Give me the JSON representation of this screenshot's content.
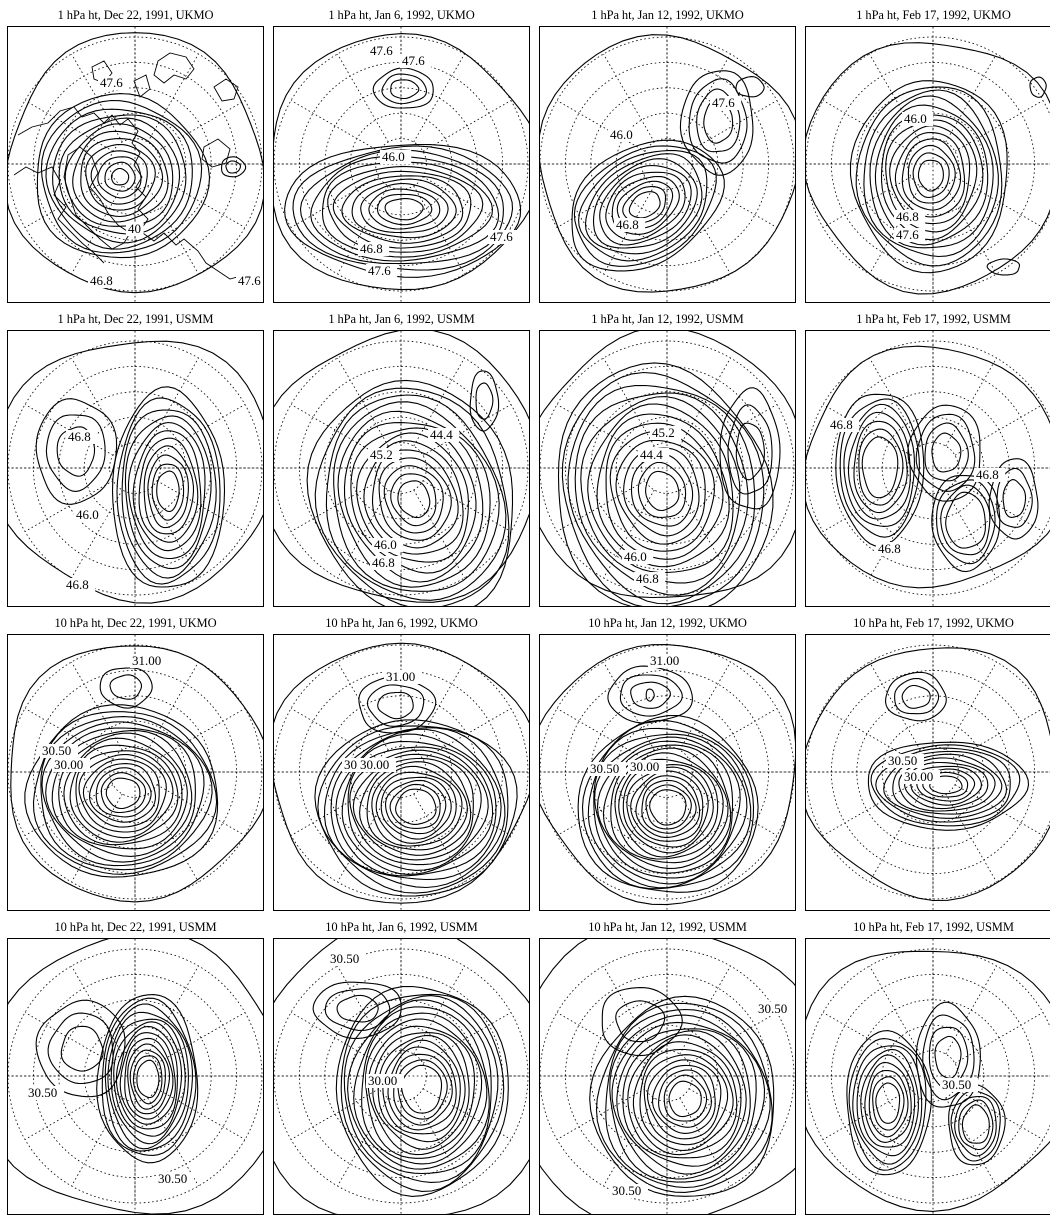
{
  "figure": {
    "panels": [
      {
        "title": "1 hPa ht, Dec 22, 1991, UKMO",
        "model": "UKMO",
        "level": "1 hPa",
        "date": "Dec 22, 1991",
        "coastlines": true,
        "labels": [
          "47.6",
          "46.8",
          "47.6",
          "40"
        ]
      },
      {
        "title": "1 hPa ht, Jan  6, 1992, UKMO",
        "model": "UKMO",
        "level": "1 hPa",
        "date": "Jan 6, 1992",
        "coastlines": false,
        "labels": [
          "47.6",
          "47.6",
          "46.0",
          "46.8",
          "47.6",
          "47.6"
        ]
      },
      {
        "title": "1 hPa ht, Jan 12, 1992, UKMO",
        "model": "UKMO",
        "level": "1 hPa",
        "date": "Jan 12, 1992",
        "coastlines": false,
        "labels": [
          "47.6",
          "46.0",
          "46.8"
        ]
      },
      {
        "title": "1 hPa ht, Feb 17, 1992, UKMO",
        "model": "UKMO",
        "level": "1 hPa",
        "date": "Feb 17, 1992",
        "coastlines": false,
        "labels": [
          "46.0",
          "46.8",
          "47.6"
        ]
      },
      {
        "title": "1 hPa ht, Dec 22, 1991, USMM",
        "model": "USMM",
        "level": "1 hPa",
        "date": "Dec 22, 1991",
        "coastlines": false,
        "labels": [
          "46.8",
          "46.0",
          "46.8"
        ]
      },
      {
        "title": "1 hPa ht, Jan  6, 1992, USMM",
        "model": "USMM",
        "level": "1 hPa",
        "date": "Jan 6, 1992",
        "coastlines": false,
        "labels": [
          "45.2",
          "44.4",
          "46.0",
          "46.8"
        ]
      },
      {
        "title": "1 hPa ht, Jan 12, 1992, USMM",
        "model": "USMM",
        "level": "1 hPa",
        "date": "Jan 12, 1992",
        "coastlines": false,
        "labels": [
          "45.2",
          "44.4",
          "46.0",
          "46.8"
        ]
      },
      {
        "title": "1 hPa ht, Feb 17, 1992, USMM",
        "model": "USMM",
        "level": "1 hPa",
        "date": "Feb 17, 1992",
        "coastlines": false,
        "labels": [
          "46.8",
          "46.8",
          "46.8"
        ]
      },
      {
        "title": "10 hPa ht, Dec 22, 1991, UKMO",
        "model": "UKMO",
        "level": "10 hPa",
        "date": "Dec 22, 1991",
        "coastlines": false,
        "labels": [
          "31.00",
          "30.50",
          "30.00"
        ]
      },
      {
        "title": "10 hPa ht, Jan  6, 1992, UKMO",
        "model": "UKMO",
        "level": "10 hPa",
        "date": "Jan 6, 1992",
        "coastlines": false,
        "labels": [
          "31.00",
          "30.50",
          "30.00"
        ]
      },
      {
        "title": "10 hPa ht, Jan 12, 1992, UKMO",
        "model": "UKMO",
        "level": "10 hPa",
        "date": "Jan 12, 1992",
        "coastlines": false,
        "labels": [
          "31.00",
          "30.50",
          "30.00"
        ]
      },
      {
        "title": "10 hPa ht, Feb 17, 1992, UKMO",
        "model": "UKMO",
        "level": "10 hPa",
        "date": "Feb 17, 1992",
        "coastlines": false,
        "labels": [
          "30.50",
          "30.00"
        ]
      },
      {
        "title": "10 hPa ht, Dec 22, 1991, USMM",
        "model": "USMM",
        "level": "10 hPa",
        "date": "Dec 22, 1991",
        "coastlines": false,
        "labels": [
          "30.50",
          "30.50"
        ]
      },
      {
        "title": "10 hPa ht, Jan  6, 1992, USMM",
        "model": "USMM",
        "level": "10 hPa",
        "date": "Jan 6, 1992",
        "coastlines": false,
        "labels": [
          "30.50",
          "30.00"
        ]
      },
      {
        "title": "10 hPa ht, Jan 12, 1992, USMM",
        "model": "USMM",
        "level": "10 hPa",
        "date": "Jan 12, 1992",
        "coastlines": false,
        "labels": [
          "30.50",
          "30.50"
        ]
      },
      {
        "title": "10 hPa ht, Feb 17, 1992, USMM",
        "model": "USMM",
        "level": "10 hPa",
        "date": "Feb 17, 1992",
        "coastlines": false,
        "labels": [
          "30.50"
        ]
      }
    ]
  }
}
